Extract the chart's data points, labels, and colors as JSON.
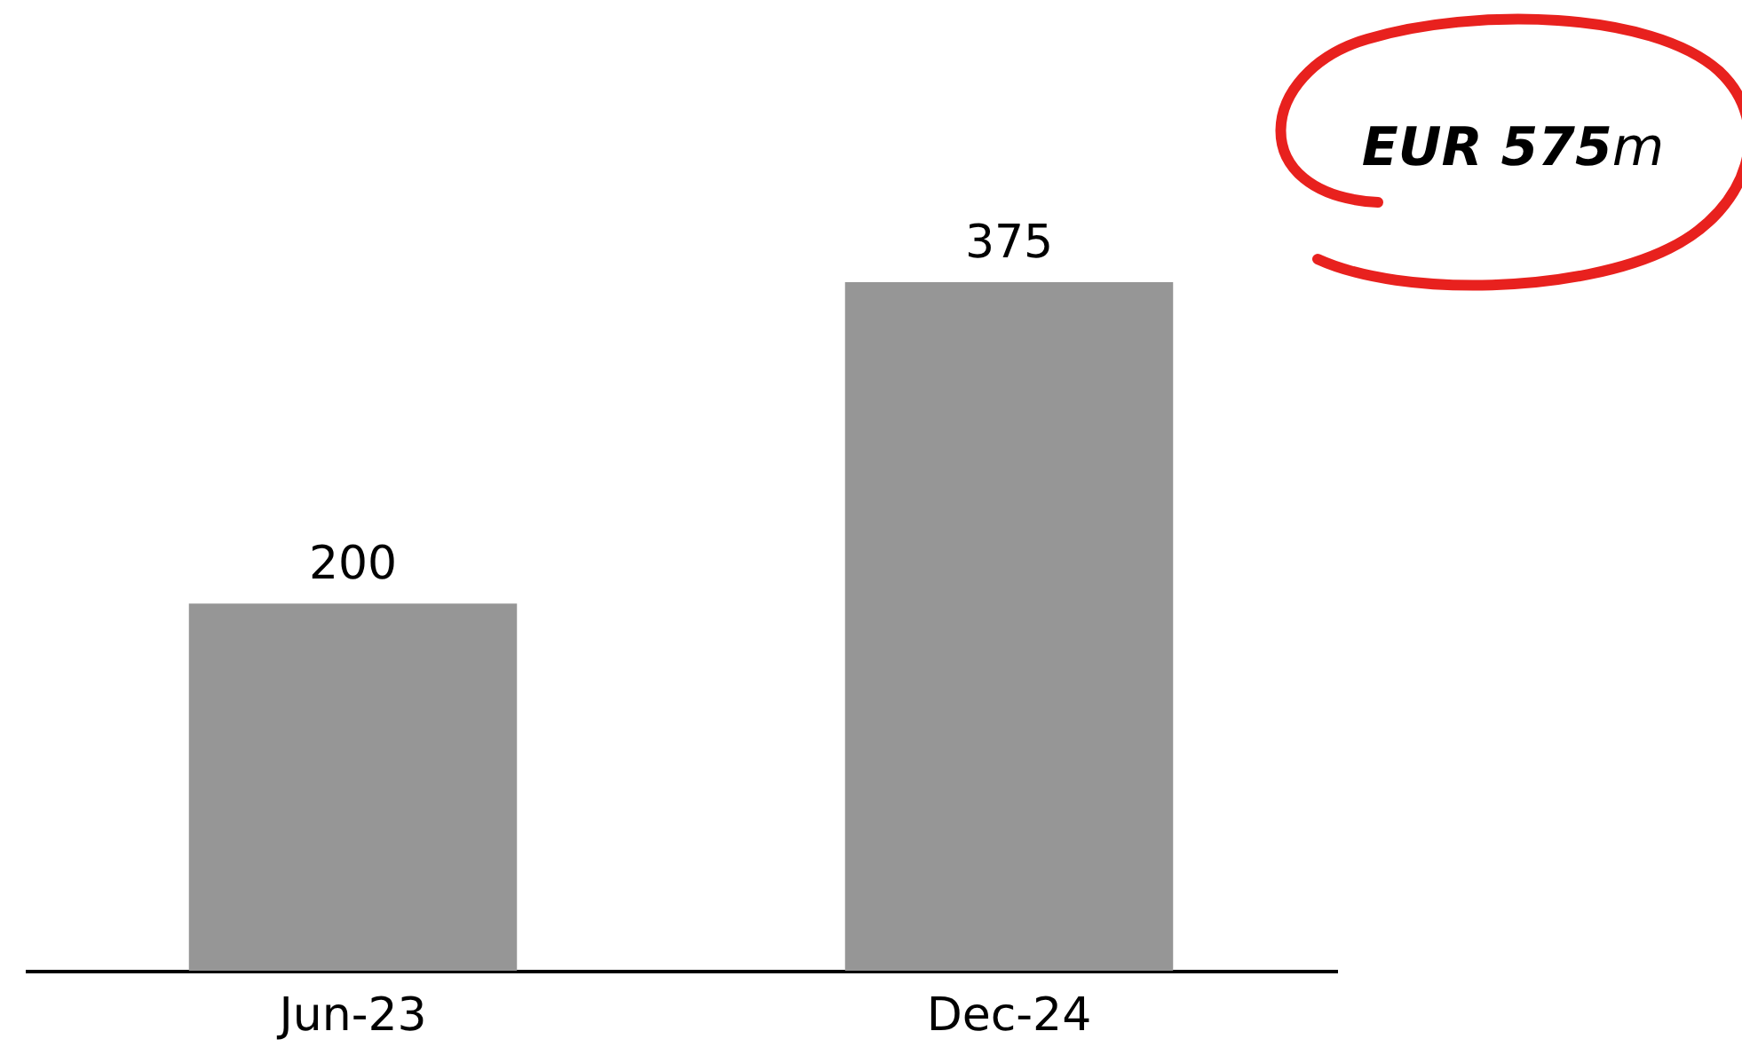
{
  "chart_data": {
    "type": "bar",
    "categories": [
      "Jun-23",
      "Dec-24"
    ],
    "values": [
      200,
      375
    ],
    "color": "#969696",
    "data_labels": true,
    "annotations": [
      "EUR 575m"
    ]
  }
}
